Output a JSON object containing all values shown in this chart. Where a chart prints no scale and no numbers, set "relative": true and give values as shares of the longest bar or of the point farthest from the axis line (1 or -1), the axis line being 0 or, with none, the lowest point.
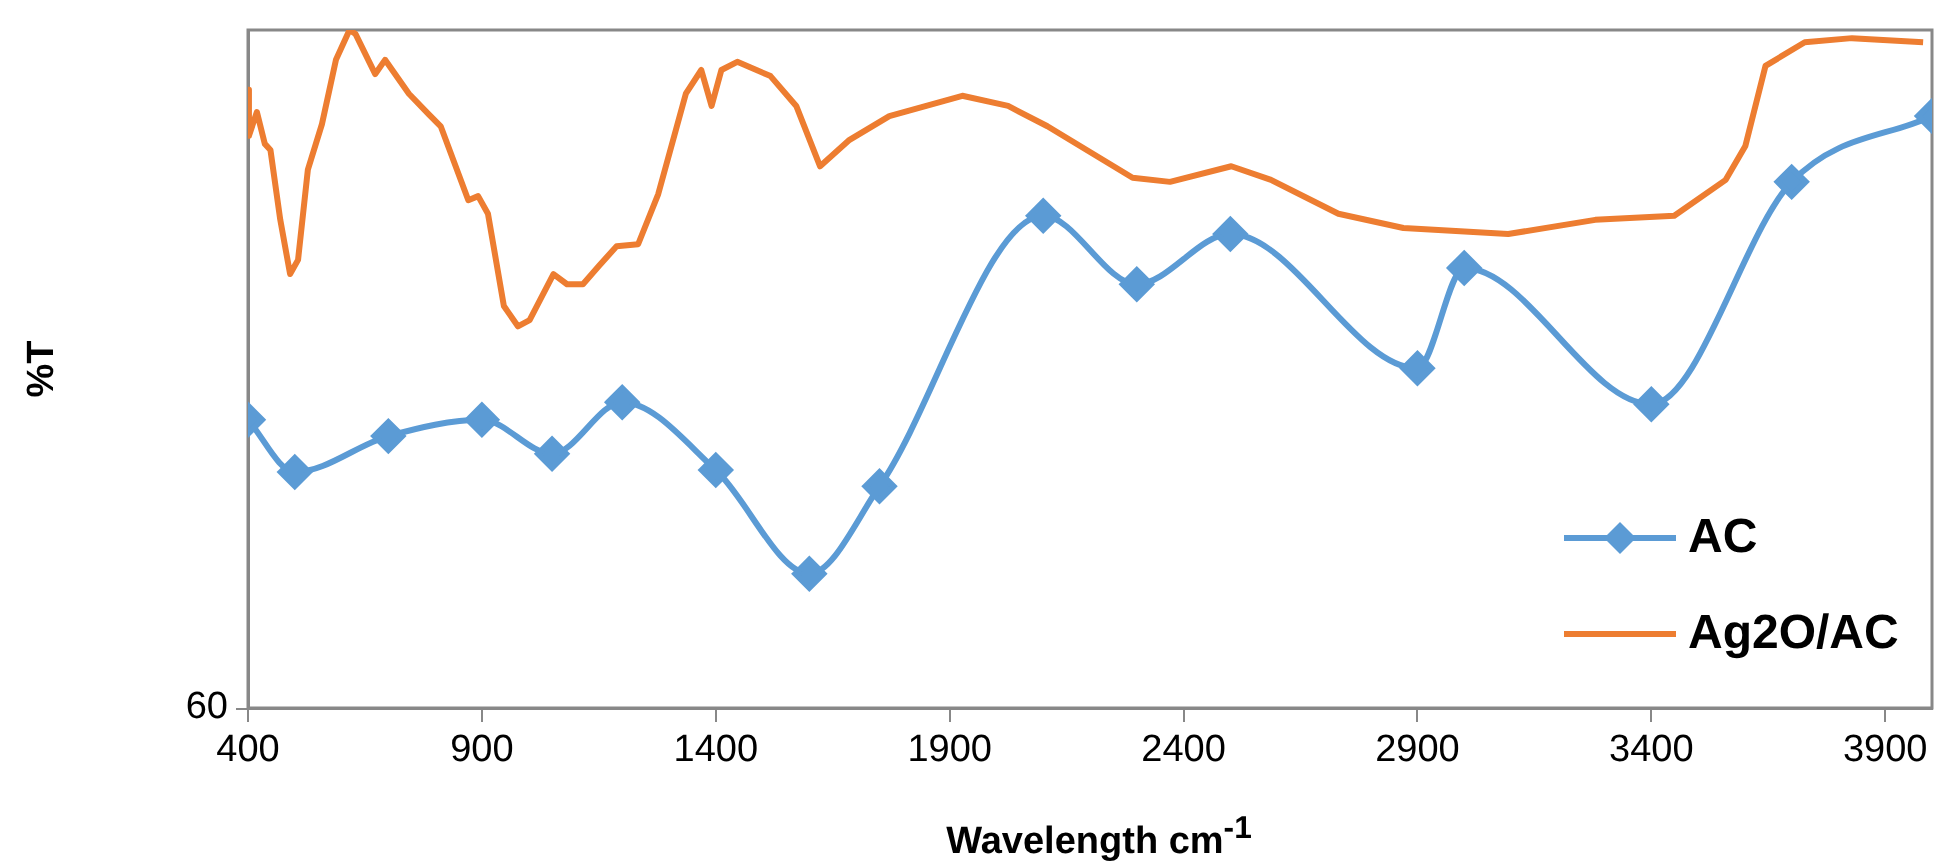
{
  "chart_data": {
    "type": "line",
    "xlabel": "Wavelength cm$^{-1}$",
    "ylabel": "%T",
    "relative": true,
    "xlim": [
      400,
      4000
    ],
    "xticks": [
      400,
      900,
      1400,
      1900,
      2400,
      2900,
      3400,
      3900
    ],
    "annotations": [
      "60"
    ],
    "grid": false,
    "legend": "bottom right",
    "series": [
      {
        "name": "AC",
        "color": "#5b9bd5",
        "marker": "diamond",
        "x": [
          400,
          500,
          700,
          900,
          1050,
          1200,
          1400,
          1600,
          1750,
          2100,
          2300,
          2500,
          2900,
          3000,
          3400,
          3700,
          4000
        ],
        "values": [
          0.425,
          0.348,
          0.401,
          0.425,
          0.375,
          0.451,
          0.351,
          0.198,
          0.327,
          0.726,
          0.625,
          0.699,
          0.501,
          0.649,
          0.448,
          0.776,
          0.873
        ]
      },
      {
        "name": "Ag2O/AC",
        "color": "#ed7d31",
        "marker": "none",
        "x": [
          400,
          402,
          419,
          436,
          448,
          469,
          490,
          507,
          528,
          558,
          588,
          617,
          630,
          672,
          693,
          744,
          786,
          812,
          871,
          892,
          913,
          947,
          977,
          1002,
          1053,
          1082,
          1116,
          1150,
          1188,
          1234,
          1277,
          1336,
          1369,
          1391,
          1412,
          1446,
          1517,
          1572,
          1623,
          1686,
          1771,
          1927,
          2025,
          2109,
          2291,
          2371,
          2502,
          2587,
          2731,
          2870,
          3094,
          3280,
          3449,
          3559,
          3601,
          3644,
          3728,
          3829,
          3981
        ],
        "values": [
          0.912,
          0.844,
          0.879,
          0.832,
          0.823,
          0.72,
          0.64,
          0.661,
          0.794,
          0.861,
          0.956,
          1.0,
          0.994,
          0.935,
          0.956,
          0.906,
          0.876,
          0.858,
          0.749,
          0.755,
          0.729,
          0.593,
          0.563,
          0.572,
          0.64,
          0.625,
          0.625,
          0.652,
          0.681,
          0.684,
          0.758,
          0.906,
          0.941,
          0.888,
          0.941,
          0.953,
          0.932,
          0.888,
          0.799,
          0.838,
          0.873,
          0.903,
          0.888,
          0.858,
          0.782,
          0.776,
          0.799,
          0.779,
          0.729,
          0.708,
          0.699,
          0.72,
          0.726,
          0.779,
          0.829,
          0.947,
          0.982,
          0.988,
          0.982
        ]
      }
    ]
  }
}
